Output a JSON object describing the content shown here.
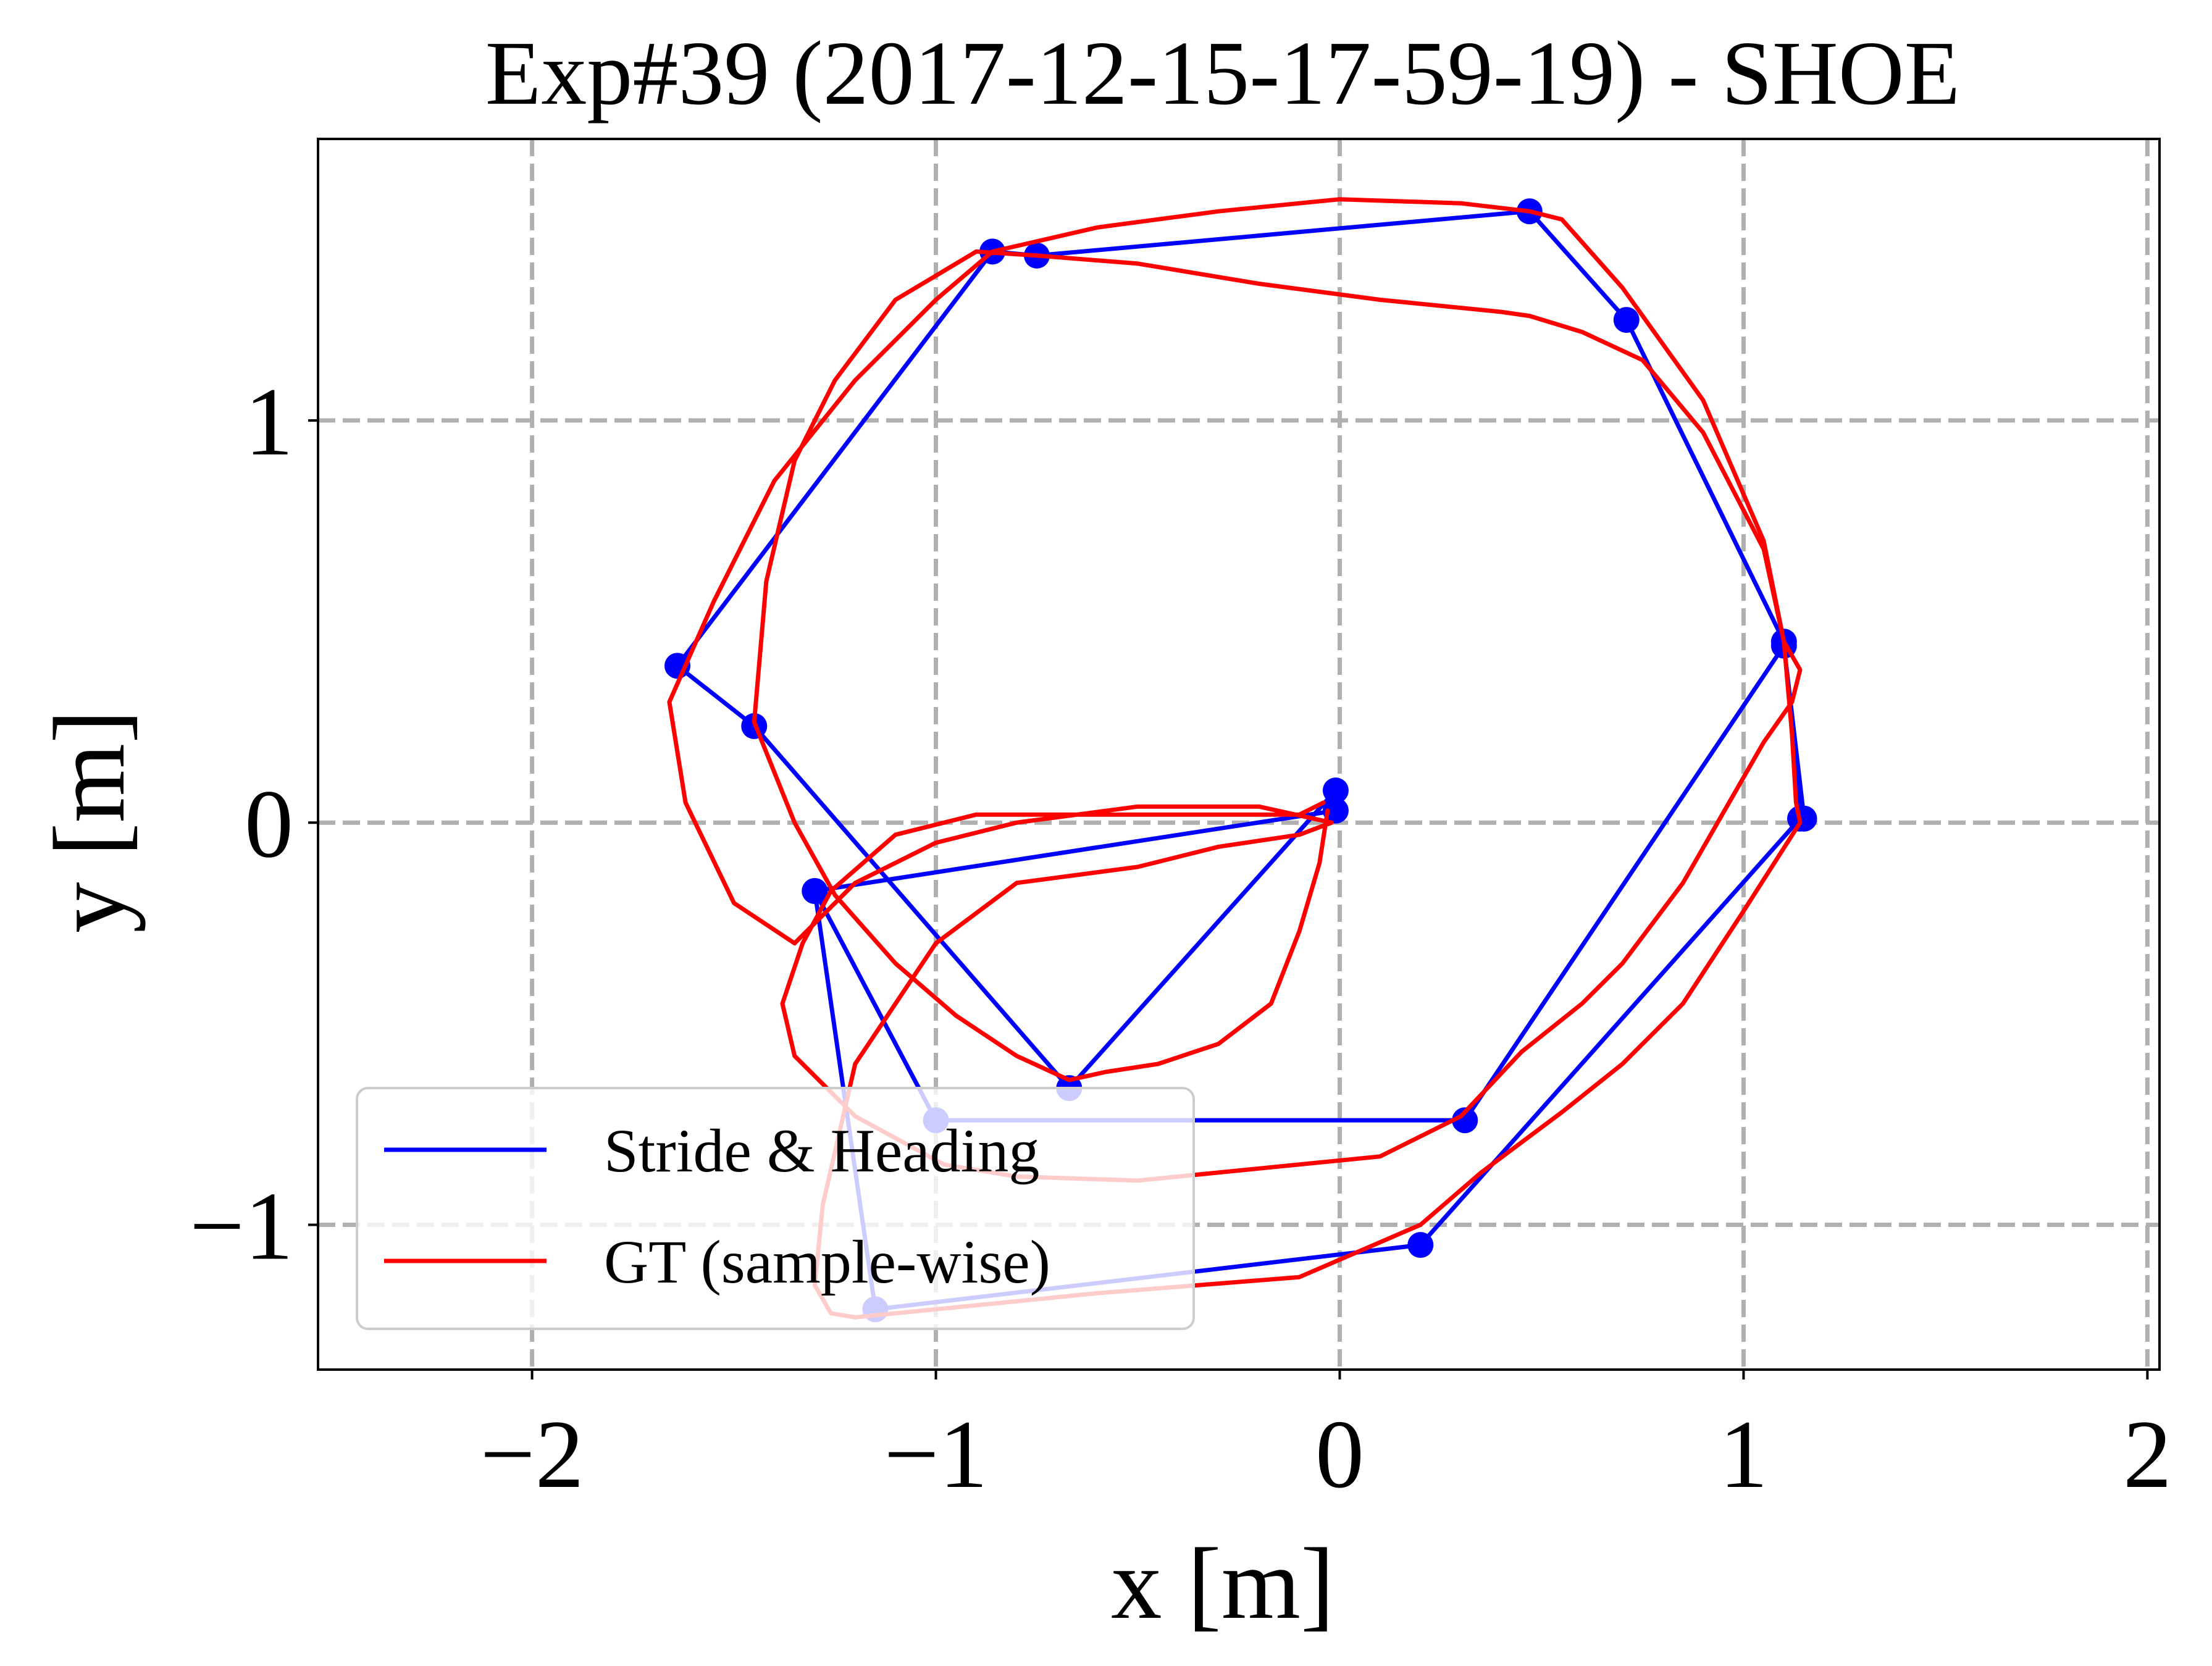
{
  "chart_data": {
    "type": "line",
    "title": "Exp#39 (2017-12-15-17-59-19) - SHOE",
    "xlabel": "x [m]",
    "ylabel": "y [m]",
    "xlim": [
      -2.53,
      2.03
    ],
    "ylim": [
      -1.36,
      1.7
    ],
    "xticks": [
      -2,
      -1,
      0,
      1,
      2
    ],
    "xtick_labels": [
      "−2",
      "−1",
      "0",
      "1",
      "2"
    ],
    "yticks": [
      -1,
      0,
      1
    ],
    "ytick_labels": [
      "−1",
      "0",
      "1"
    ],
    "grid": true,
    "legend_position": "lower-left",
    "series": [
      {
        "name": "Stride & Heading",
        "color": "#0000ff",
        "markers": true,
        "x": [
          -0.01,
          -0.67,
          -1.45,
          -1.64,
          -0.86,
          -0.75,
          0.47,
          0.71,
          1.1,
          1.14,
          0.2,
          -1.15,
          -1.3,
          -0.01,
          -1.3,
          -1.0,
          0.31,
          1.1,
          1.15
        ],
        "y": [
          0.08,
          -0.66,
          0.24,
          0.39,
          1.42,
          1.41,
          1.52,
          1.25,
          0.45,
          0.01,
          -1.05,
          -1.21,
          -0.17,
          0.03,
          -0.17,
          -0.74,
          -0.74,
          0.44,
          0.01
        ]
      },
      {
        "name": "GT (sample-wise)",
        "color": "#ff0000",
        "markers": false,
        "x": [
          -0.03,
          -0.05,
          -0.1,
          -0.17,
          -0.3,
          -0.45,
          -0.58,
          -0.67,
          -0.8,
          -0.95,
          -1.1,
          -1.25,
          -1.35,
          -1.45,
          -1.42,
          -1.35,
          -1.25,
          -1.1,
          -0.9,
          -0.75,
          -0.5,
          -0.2,
          0.1,
          0.4,
          0.47,
          0.6,
          0.75,
          0.9,
          1.05,
          1.1,
          1.12,
          1.13,
          1.14,
          1.0,
          0.85,
          0.7,
          0.55,
          0.35,
          0.2,
          -0.1,
          -0.6,
          -1.1,
          -1.2,
          -1.26,
          -1.3,
          -1.28,
          -1.2,
          -1.0,
          -0.8,
          -0.5,
          -0.3,
          -0.1,
          -0.02,
          -0.2,
          -0.5,
          -0.8,
          -1.0,
          -1.2,
          -1.35,
          -1.5,
          -1.62,
          -1.66,
          -1.55,
          -1.4,
          -1.2,
          -1.0,
          -0.86,
          -0.6,
          -0.3,
          0.0,
          0.3,
          0.47,
          0.55,
          0.7,
          0.9,
          1.05,
          1.1,
          1.14,
          1.12,
          1.05,
          0.85,
          0.7,
          0.6,
          0.45,
          0.3,
          0.1,
          -0.2,
          -0.5,
          -0.8,
          -0.98,
          -1.2,
          -1.35,
          -1.38,
          -1.33,
          -1.26,
          -1.1,
          -0.9,
          -0.7,
          -0.5,
          -0.3,
          -0.1,
          -0.04
        ],
        "y": [
          0.03,
          -0.1,
          -0.27,
          -0.45,
          -0.55,
          -0.6,
          -0.62,
          -0.64,
          -0.58,
          -0.48,
          -0.35,
          -0.18,
          0.0,
          0.25,
          0.6,
          0.9,
          1.1,
          1.3,
          1.42,
          1.41,
          1.39,
          1.34,
          1.3,
          1.27,
          1.26,
          1.22,
          1.15,
          0.97,
          0.68,
          0.45,
          0.22,
          0.05,
          0.0,
          -0.22,
          -0.45,
          -0.6,
          -0.72,
          -0.87,
          -1.0,
          -1.13,
          -1.17,
          -1.22,
          -1.23,
          -1.22,
          -1.15,
          -0.95,
          -0.6,
          -0.3,
          -0.15,
          -0.11,
          -0.06,
          -0.03,
          0.0,
          0.04,
          0.04,
          0.0,
          -0.05,
          -0.15,
          -0.3,
          -0.2,
          0.05,
          0.3,
          0.55,
          0.85,
          1.1,
          1.3,
          1.42,
          1.48,
          1.52,
          1.55,
          1.54,
          1.52,
          1.5,
          1.33,
          1.05,
          0.7,
          0.45,
          0.38,
          0.3,
          0.2,
          -0.15,
          -0.35,
          -0.45,
          -0.57,
          -0.73,
          -0.83,
          -0.86,
          -0.89,
          -0.88,
          -0.85,
          -0.73,
          -0.58,
          -0.45,
          -0.3,
          -0.17,
          -0.03,
          0.02,
          0.02,
          0.02,
          0.02,
          0.02,
          0.05
        ]
      }
    ]
  }
}
